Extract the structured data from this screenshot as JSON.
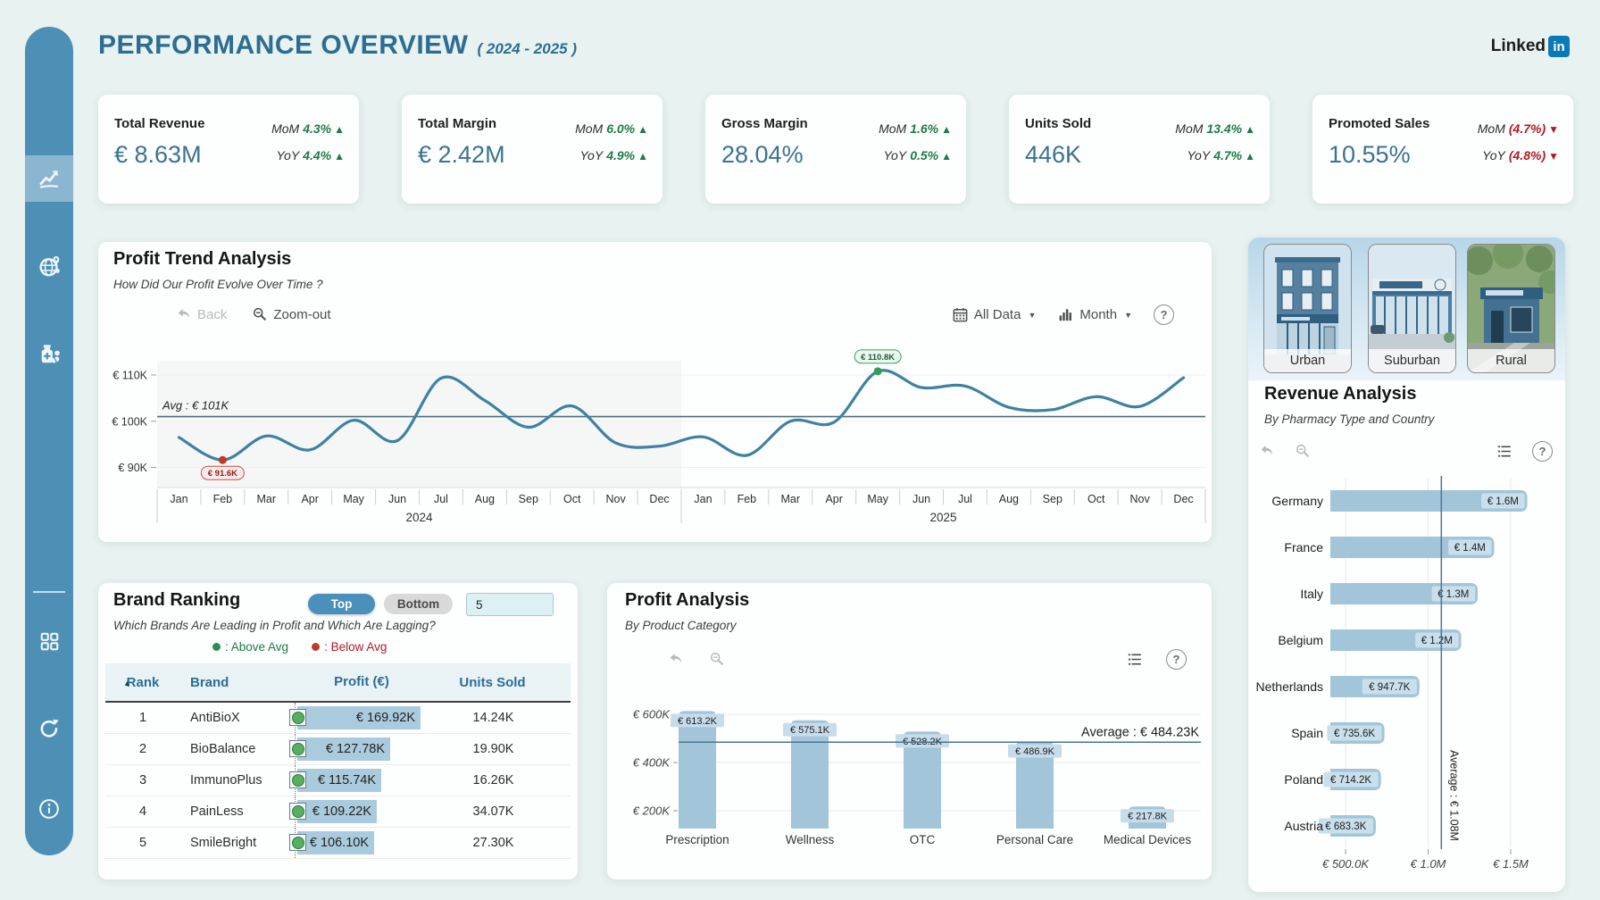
{
  "page": {
    "title": "PERFORMANCE OVERVIEW",
    "period": "( 2024 - 2025 )"
  },
  "logo": {
    "text": "Linked",
    "badge": "in"
  },
  "ui": {
    "dropdown": "▼",
    "up_arrow": "▲",
    "down_arrow": "▼",
    "sort_asc": "▲",
    "help": "?"
  },
  "sidebar": {
    "items": [
      {
        "name": "performance",
        "icon": "trend-icon",
        "active": true
      },
      {
        "name": "geography",
        "icon": "globe-icon",
        "active": false
      },
      {
        "name": "pharmacy",
        "icon": "pharmacy-icon",
        "active": false
      },
      {
        "name": "apps",
        "icon": "grid-icon",
        "active": false
      },
      {
        "name": "refresh",
        "icon": "refresh-icon",
        "active": false
      },
      {
        "name": "info",
        "icon": "info-icon",
        "active": false
      }
    ]
  },
  "kpis": [
    {
      "label": "Total Revenue",
      "value": "€ 8.63M",
      "mom_label": "MoM",
      "mom_value": "4.3%",
      "mom_dir": "up",
      "yoy_label": "YoY",
      "yoy_value": "4.4%",
      "yoy_dir": "up"
    },
    {
      "label": "Total Margin",
      "value": "€ 2.42M",
      "mom_label": "MoM",
      "mom_value": "6.0%",
      "mom_dir": "up",
      "yoy_label": "YoY",
      "yoy_value": "4.9%",
      "yoy_dir": "up"
    },
    {
      "label": "Gross Margin",
      "value": "28.04%",
      "mom_label": "MoM",
      "mom_value": "1.6%",
      "mom_dir": "up",
      "yoy_label": "YoY",
      "yoy_value": "0.5%",
      "yoy_dir": "up"
    },
    {
      "label": "Units Sold",
      "value": "446K",
      "mom_label": "MoM",
      "mom_value": "13.4%",
      "mom_dir": "up",
      "yoy_label": "YoY",
      "yoy_value": "4.7%",
      "yoy_dir": "up"
    },
    {
      "label": "Promoted Sales",
      "value": "10.55%",
      "mom_label": "MoM",
      "mom_value": "(4.7%)",
      "mom_dir": "down",
      "yoy_label": "YoY",
      "yoy_value": "(4.8%)",
      "yoy_dir": "down"
    }
  ],
  "profit_trend": {
    "title": "Profit Trend Analysis",
    "subtitle": "How Did Our Profit Evolve Over Time ?",
    "toolbar": {
      "back": "Back",
      "zoom_out": "Zoom-out",
      "date_filter": "All Data",
      "granularity": "Month"
    }
  },
  "brand_ranking": {
    "title": "Brand Ranking",
    "toggle": {
      "top": "Top",
      "bottom": "Bottom"
    },
    "count": "5",
    "subtitle": "Which Brands Are Leading in Profit and Which Are Lagging?",
    "legend": [
      {
        "label": ": Above Avg",
        "color": "#1e7b45"
      },
      {
        "label": ": Below Avg",
        "color": "#b01b23"
      }
    ],
    "columns": [
      "Rank",
      "Brand",
      "Profit (€)",
      "Units Sold"
    ],
    "rows": [
      {
        "rank": "1",
        "brand": "AntiBioX",
        "profit": "€ 169.92K",
        "profit_v": 169.92,
        "units": "14.24K",
        "status": "above"
      },
      {
        "rank": "2",
        "brand": "BioBalance",
        "profit": "€ 127.78K",
        "profit_v": 127.78,
        "units": "19.90K",
        "status": "above"
      },
      {
        "rank": "3",
        "brand": "ImmunoPlus",
        "profit": "€ 115.74K",
        "profit_v": 115.74,
        "units": "16.26K",
        "status": "above"
      },
      {
        "rank": "4",
        "brand": "PainLess",
        "profit": "€ 109.22K",
        "profit_v": 109.22,
        "units": "34.07K",
        "status": "above"
      },
      {
        "rank": "5",
        "brand": "SmileBright",
        "profit": "€ 106.10K",
        "profit_v": 106.1,
        "units": "27.30K",
        "status": "above"
      }
    ]
  },
  "profit_analysis": {
    "title": "Profit Analysis",
    "subtitle": "By Product Category"
  },
  "revenue_analysis": {
    "title": "Revenue Analysis",
    "subtitle": "By Pharmacy Type and Country"
  },
  "pharmacy_types": [
    {
      "label": "Urban"
    },
    {
      "label": "Suburban"
    },
    {
      "label": "Rural"
    }
  ],
  "chart_data": [
    {
      "id": "profit_trend",
      "type": "line",
      "title": "Profit Trend Analysis",
      "months": [
        "Jan",
        "Feb",
        "Mar",
        "Apr",
        "May",
        "Jun",
        "Jul",
        "Aug",
        "Sep",
        "Oct",
        "Nov",
        "Dec"
      ],
      "year_groups": [
        {
          "label": "2024"
        },
        {
          "label": "2025"
        }
      ],
      "values_k": [
        96.5,
        91.6,
        96.8,
        93.8,
        100.2,
        95.8,
        109.3,
        104.5,
        98.7,
        103.3,
        95.3,
        94.6,
        96.6,
        92.6,
        100.0,
        99.8,
        110.8,
        107.3,
        107.6,
        103.0,
        102.5,
        105.3,
        103.2,
        109.4
      ],
      "unit": "€K",
      "ylim": [
        88,
        114
      ],
      "yticks": [
        {
          "label": "€ 90K",
          "v": 90
        },
        {
          "label": "€ 100K",
          "v": 100
        },
        {
          "label": "€ 110K",
          "v": 110
        }
      ],
      "average": {
        "label": "Avg : € 101K",
        "v": 101
      },
      "min_marker": {
        "index": 1,
        "label": "€ 91.6K"
      },
      "max_marker": {
        "index": 16,
        "label": "€ 110.8K"
      }
    },
    {
      "id": "profit_by_category",
      "type": "bar",
      "title": "Profit Analysis",
      "categories": [
        "Prescription",
        "Wellness",
        "OTC",
        "Personal Care",
        "Medical Devices"
      ],
      "values_k": [
        613.2,
        575.1,
        528.2,
        486.9,
        217.8
      ],
      "labels": [
        "€ 613.2K",
        "€ 575.1K",
        "€ 528.2K",
        "€ 486.9K",
        "€ 217.8K"
      ],
      "yticks": [
        {
          "label": "€ 200K",
          "v": 200
        },
        {
          "label": "€ 400K",
          "v": 400
        },
        {
          "label": "€ 600K",
          "v": 600
        }
      ],
      "ylim": [
        0,
        700
      ],
      "average": {
        "label": "Average : € 484.23K",
        "v": 484.23
      }
    },
    {
      "id": "revenue_by_country",
      "type": "hbar",
      "title": "Revenue Analysis",
      "categories": [
        "Germany",
        "France",
        "Italy",
        "Belgium",
        "Netherlands",
        "Spain",
        "Poland",
        "Austria"
      ],
      "values_k": [
        1600,
        1400,
        1300,
        1200,
        947.7,
        735.6,
        714.2,
        683.3
      ],
      "labels": [
        "€ 1.6M",
        "€ 1.4M",
        "€ 1.3M",
        "€ 1.2M",
        "€ 947.7K",
        "€ 735.6K",
        "€ 714.2K",
        "€ 683.3K"
      ],
      "xticks": [
        {
          "label": "€ 500.0K",
          "v": 500
        },
        {
          "label": "€ 1.0M",
          "v": 1000
        },
        {
          "label": "€ 1.5M",
          "v": 1500
        }
      ],
      "xlim": [
        408,
        1640
      ],
      "average": {
        "label": "Average : € 1.08M",
        "v": 1080
      }
    }
  ]
}
